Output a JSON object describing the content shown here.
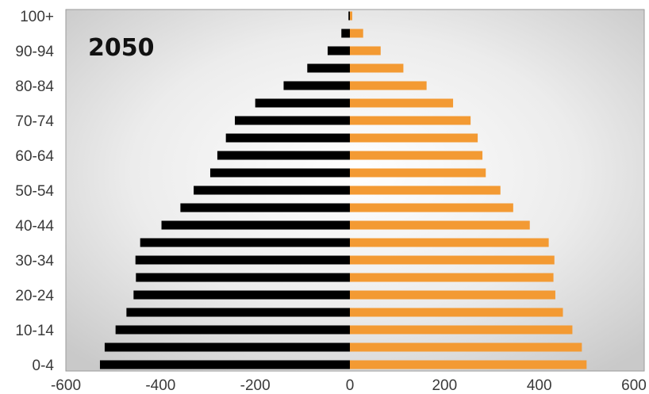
{
  "chart_data": {
    "type": "bar",
    "orientation": "horizontal",
    "title": "2050",
    "xlabel": "",
    "ylabel": "",
    "xlim": [
      -600,
      600
    ],
    "xticks": [
      -600,
      -400,
      -200,
      0,
      200,
      400,
      600
    ],
    "grid": false,
    "categories": [
      "100+",
      "95-99",
      "90-94",
      "85-89",
      "80-84",
      "75-79",
      "70-74",
      "65-69",
      "60-64",
      "55-59",
      "50-54",
      "45-49",
      "40-44",
      "35-39",
      "30-34",
      "25-29",
      "20-24",
      "15-19",
      "10-14",
      "5-9",
      "0-4"
    ],
    "visible_category_labels": [
      "100+",
      "90-94",
      "80-84",
      "70-74",
      "60-64",
      "50-54",
      "40-44",
      "30-34",
      "20-24",
      "10-14",
      "0-4"
    ],
    "series": [
      {
        "values": [
          -3,
          -18,
          -47,
          -90,
          -140,
          -200,
          -243,
          -262,
          -280,
          -295,
          -330,
          -358,
          -398,
          -443,
          -453,
          -452,
          -457,
          -472,
          -495,
          -518,
          -528
        ]
      },
      {
        "values": [
          5,
          28,
          65,
          113,
          162,
          218,
          255,
          270,
          280,
          287,
          318,
          345,
          380,
          420,
          432,
          430,
          434,
          450,
          470,
          490,
          500
        ]
      }
    ],
    "colors": {
      "left": "#000000",
      "right": "#f39a33",
      "plot_bg_center": "#ffffff",
      "plot_bg_edge": "#c9c9c9",
      "frame": "#9a9a9a"
    }
  }
}
